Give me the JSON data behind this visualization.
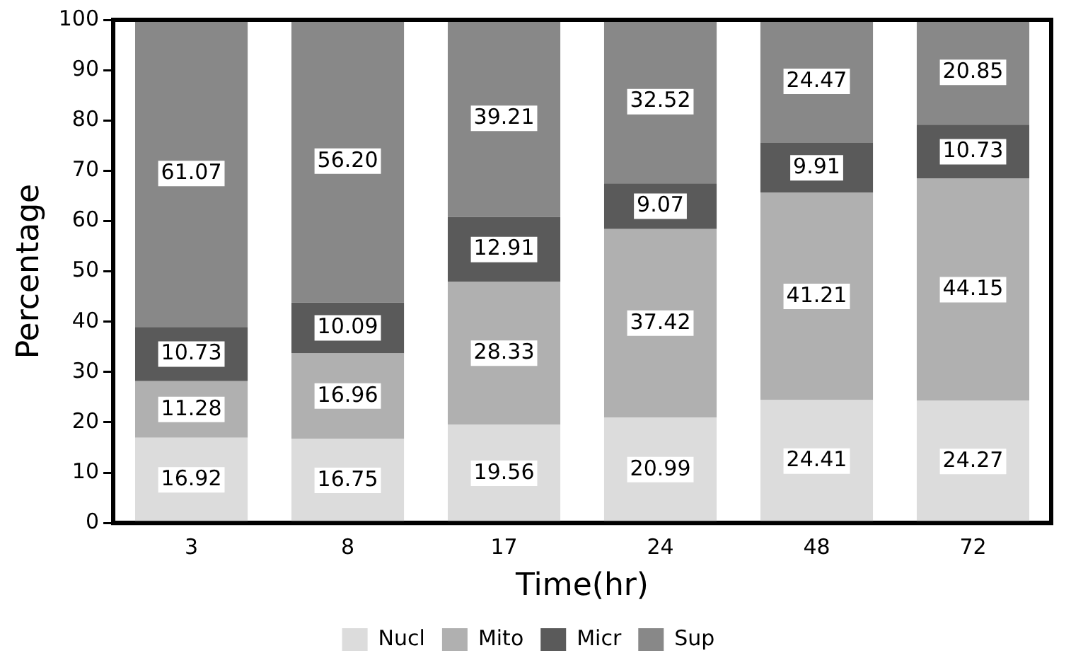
{
  "chart_data": {
    "type": "bar",
    "stacked": true,
    "xlabel": "Time(hr)",
    "ylabel": "Percentage",
    "categories": [
      "3",
      "8",
      "17",
      "24",
      "48",
      "72"
    ],
    "series": [
      {
        "name": "Nucl",
        "color": "#dcdcdc",
        "values": [
          16.92,
          16.75,
          19.56,
          20.99,
          24.41,
          24.27
        ],
        "value_labels": [
          "16.92",
          "16.75",
          "19.56",
          "20.99",
          "24.41",
          "24.27"
        ]
      },
      {
        "name": "Mito",
        "color": "#b0b0b0",
        "values": [
          11.28,
          16.96,
          28.33,
          37.42,
          41.21,
          44.15
        ],
        "value_labels": [
          "11.28",
          "16.96",
          "28.33",
          "37.42",
          "41.21",
          "44.15"
        ]
      },
      {
        "name": "Micr",
        "color": "#5a5a5a",
        "values": [
          10.73,
          10.09,
          12.91,
          9.07,
          9.91,
          10.73
        ],
        "value_labels": [
          "10.73",
          "10.09",
          "12.91",
          "9.07",
          "9.91",
          "10.73"
        ]
      },
      {
        "name": "Sup",
        "color": "#888888",
        "values": [
          61.07,
          56.2,
          39.21,
          32.52,
          24.47,
          20.85
        ],
        "value_labels": [
          "61.07",
          "56.20",
          "39.21",
          "32.52",
          "24.47",
          "20.85"
        ]
      }
    ],
    "ylim": [
      0,
      100
    ],
    "yticks": [
      0,
      10,
      20,
      30,
      40,
      50,
      60,
      70,
      80,
      90,
      100
    ],
    "grid": false,
    "legend": "bottom"
  }
}
